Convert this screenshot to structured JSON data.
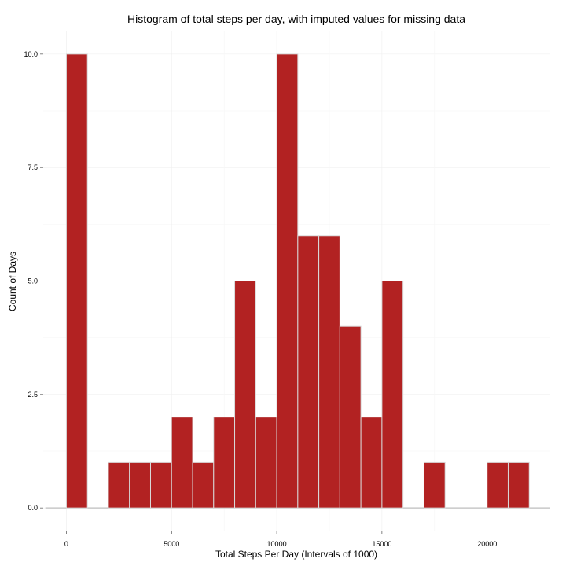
{
  "chart_data": {
    "type": "bar",
    "title": "Histogram of total steps per day, with imputed values for missing data",
    "xlabel": "Total Steps Per Day (Intervals of 1000)",
    "ylabel": "Count of Days",
    "bin_width": 1000,
    "bins": [
      {
        "start": 0,
        "end": 1000,
        "count": 10
      },
      {
        "start": 1000,
        "end": 2000,
        "count": 0
      },
      {
        "start": 2000,
        "end": 3000,
        "count": 1
      },
      {
        "start": 3000,
        "end": 4000,
        "count": 1
      },
      {
        "start": 4000,
        "end": 5000,
        "count": 1
      },
      {
        "start": 5000,
        "end": 6000,
        "count": 2
      },
      {
        "start": 6000,
        "end": 7000,
        "count": 1
      },
      {
        "start": 7000,
        "end": 8000,
        "count": 2
      },
      {
        "start": 8000,
        "end": 9000,
        "count": 5
      },
      {
        "start": 9000,
        "end": 10000,
        "count": 2
      },
      {
        "start": 10000,
        "end": 11000,
        "count": 10
      },
      {
        "start": 11000,
        "end": 12000,
        "count": 6
      },
      {
        "start": 12000,
        "end": 13000,
        "count": 6
      },
      {
        "start": 13000,
        "end": 14000,
        "count": 4
      },
      {
        "start": 14000,
        "end": 15000,
        "count": 2
      },
      {
        "start": 15000,
        "end": 16000,
        "count": 5
      },
      {
        "start": 16000,
        "end": 17000,
        "count": 0
      },
      {
        "start": 17000,
        "end": 18000,
        "count": 1
      },
      {
        "start": 18000,
        "end": 19000,
        "count": 0
      },
      {
        "start": 19000,
        "end": 20000,
        "count": 0
      },
      {
        "start": 20000,
        "end": 21000,
        "count": 1
      },
      {
        "start": 21000,
        "end": 22000,
        "count": 1
      }
    ],
    "xlim": [
      -1100,
      23000
    ],
    "ylim": [
      -0.5,
      10.5
    ],
    "xticks": [
      0,
      5000,
      10000,
      15000,
      20000
    ],
    "xtick_labels": [
      "0",
      "5000",
      "10000",
      "15000",
      "20000"
    ],
    "yticks": [
      0,
      2.5,
      5,
      7.5,
      10
    ],
    "ytick_labels": [
      "0.0",
      "2.5",
      "5.0",
      "7.5",
      "10.0"
    ],
    "baseline_range": [
      -1000,
      23000
    ],
    "grid": true,
    "legend": "none",
    "colors": {
      "bar_fill": "#b22222",
      "bar_outline": "#d9d9d9",
      "background": "#ffffff"
    }
  }
}
